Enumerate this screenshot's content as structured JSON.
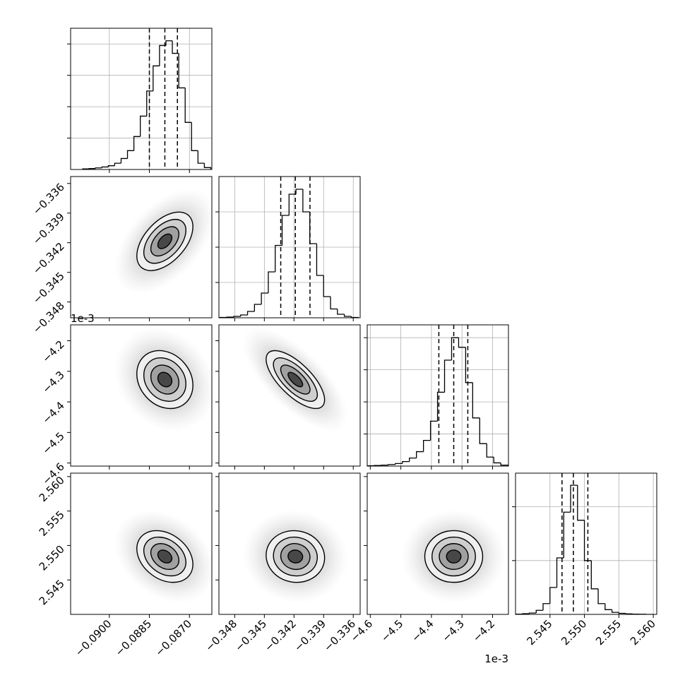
{
  "chart_data": {
    "type": "corner",
    "color": "#000000",
    "grid": true,
    "parameters": [
      {
        "lim": [
          -0.09145,
          -0.08616
        ],
        "ticks": [
          {
            "value": -0.09,
            "label": "−0.0900"
          },
          {
            "value": -0.0885,
            "label": "−0.0885"
          },
          {
            "value": -0.087,
            "label": "−0.0870"
          }
        ],
        "quantiles": [
          -0.0885,
          -0.08792,
          -0.08745
        ],
        "bins": [
          -0.091,
          -0.09076,
          -0.09052,
          -0.09028,
          -0.09004,
          -0.0898,
          -0.08956,
          -0.08932,
          -0.08908,
          -0.08884,
          -0.0886,
          -0.08836,
          -0.08812,
          -0.08788,
          -0.08764,
          -0.0874,
          -0.08716,
          -0.08692,
          -0.08668,
          -0.08644,
          -0.0862
        ],
        "counts": [
          2,
          3,
          5,
          8,
          12,
          20,
          35,
          60,
          105,
          170,
          250,
          330,
          395,
          410,
          370,
          260,
          150,
          60,
          20,
          6
        ],
        "count_lim": [
          0,
          450
        ],
        "count_ticks": [
          100,
          200,
          300,
          400
        ]
      },
      {
        "lim": [
          -0.3496,
          -0.3353
        ],
        "ticks": [
          {
            "value": -0.348,
            "label": "−0.348"
          },
          {
            "value": -0.345,
            "label": "−0.345"
          },
          {
            "value": -0.342,
            "label": "−0.342"
          },
          {
            "value": -0.339,
            "label": "−0.339"
          },
          {
            "value": -0.336,
            "label": "−0.336"
          }
        ],
        "quantiles": [
          -0.34334,
          -0.34186,
          -0.34038
        ],
        "bins": [
          -0.3495,
          -0.3488,
          -0.3481,
          -0.3474,
          -0.3467,
          -0.346,
          -0.3453,
          -0.3446,
          -0.3439,
          -0.3432,
          -0.3425,
          -0.3418,
          -0.3411,
          -0.3404,
          -0.3397,
          -0.339,
          -0.3383,
          -0.3376,
          -0.3369,
          -0.3362,
          -0.3355
        ],
        "counts": [
          1,
          2,
          4,
          8,
          18,
          38,
          70,
          130,
          205,
          290,
          350,
          364,
          300,
          210,
          120,
          60,
          25,
          10,
          4,
          1
        ],
        "count_lim": [
          0,
          400
        ],
        "count_ticks": [
          100,
          200,
          300
        ]
      },
      {
        "lim": [
          -4.61,
          -4.148
        ],
        "ticks": [
          {
            "value": -4.6,
            "label": "−4.6"
          },
          {
            "value": -4.5,
            "label": "−4.5"
          },
          {
            "value": -4.4,
            "label": "−4.4"
          },
          {
            "value": -4.3,
            "label": "−4.3"
          },
          {
            "value": -4.2,
            "label": "−4.2"
          }
        ],
        "offset_label": "1e-3",
        "quantiles": [
          -4.3757,
          -4.327,
          -4.281
        ],
        "bins": [
          -4.61,
          -4.587,
          -4.564,
          -4.541,
          -4.518,
          -4.495,
          -4.472,
          -4.449,
          -4.426,
          -4.403,
          -4.38,
          -4.357,
          -4.334,
          -4.311,
          -4.288,
          -4.265,
          -4.242,
          -4.219,
          -4.196,
          -4.173,
          -4.15
        ],
        "counts": [
          1,
          2,
          3,
          5,
          8,
          14,
          25,
          45,
          80,
          140,
          230,
          330,
          400,
          370,
          260,
          150,
          70,
          28,
          10,
          3
        ],
        "count_lim": [
          0,
          440
        ],
        "count_ticks": [
          100,
          200,
          300,
          400
        ]
      },
      {
        "lim": [
          2.54,
          2.5605
        ],
        "ticks": [
          2.545,
          {
            "value": 2.55,
            "label": "2.550"
          },
          2.555,
          {
            "value": 2.56,
            "label": "2.560"
          }
        ],
        "quantiles": [
          2.54675,
          2.5484,
          2.5505
        ],
        "bins": [
          2.54,
          2.541,
          2.542,
          2.543,
          2.544,
          2.545,
          2.546,
          2.547,
          2.548,
          2.549,
          2.55,
          2.551,
          2.552,
          2.553,
          2.554,
          2.555,
          2.556,
          2.557,
          2.558,
          2.559,
          2.56
        ],
        "counts": [
          2,
          5,
          10,
          30,
          80,
          200,
          420,
          760,
          960,
          700,
          400,
          190,
          80,
          35,
          15,
          8,
          4,
          2,
          1,
          0
        ],
        "count_lim": [
          0,
          1050
        ],
        "count_ticks": [
          400,
          800
        ]
      }
    ],
    "correlations": [
      {
        "x": 0,
        "y": 1,
        "rho": 0.5
      },
      {
        "x": 0,
        "y": 2,
        "rho": -0.2
      },
      {
        "x": 1,
        "y": 2,
        "rho": -0.7
      },
      {
        "x": 0,
        "y": 3,
        "rho": -0.3
      },
      {
        "x": 1,
        "y": 3,
        "rho": -0.05
      },
      {
        "x": 2,
        "y": 3,
        "rho": 0.0
      }
    ]
  }
}
